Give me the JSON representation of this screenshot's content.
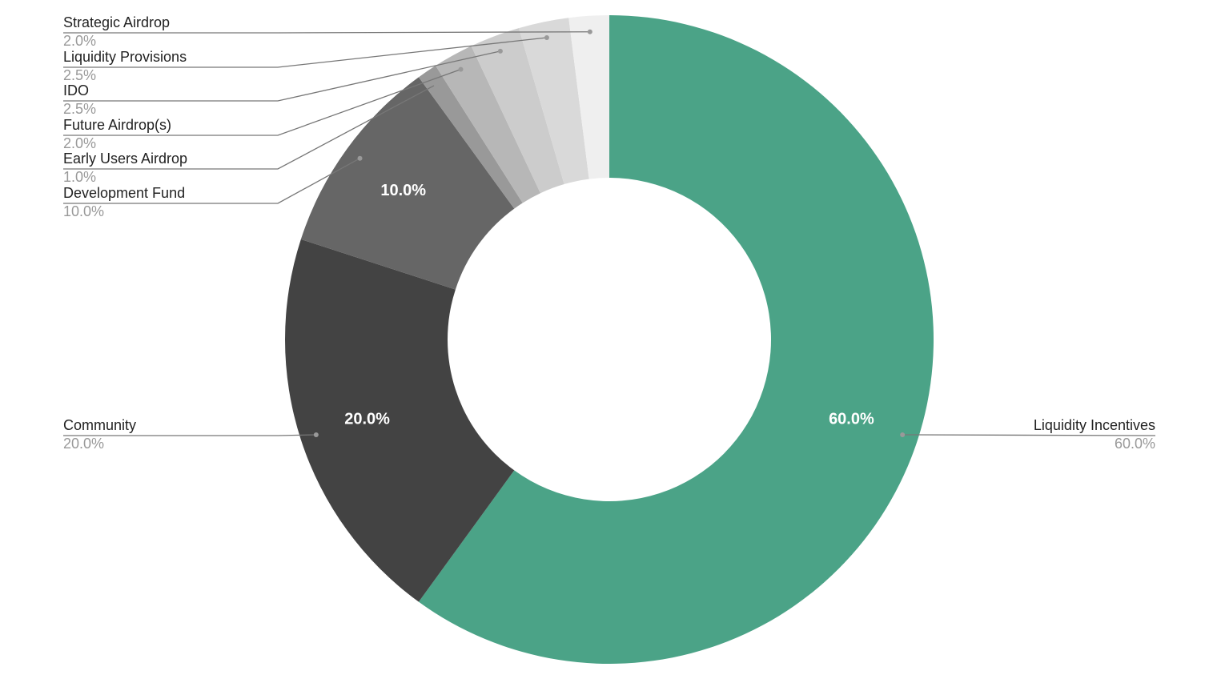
{
  "chart_data": {
    "type": "donut",
    "categories": [
      "Liquidity Incentives",
      "Community",
      "Development Fund",
      "Early Users Airdrop",
      "Future Airdrop(s)",
      "IDO",
      "Liquidity Provisions",
      "Strategic Airdrop"
    ],
    "values": [
      60,
      20,
      10,
      1,
      2,
      2.5,
      2.5,
      2
    ],
    "value_labels": [
      "60.0%",
      "20.0%",
      "10.0%",
      "1.0%",
      "2.0%",
      "2.5%",
      "2.5%",
      "2.0%"
    ],
    "colors": [
      "#4ba387",
      "#434343",
      "#666666",
      "#999999",
      "#b7b7b7",
      "#cccccc",
      "#d9d9d9",
      "#efefef"
    ]
  }
}
